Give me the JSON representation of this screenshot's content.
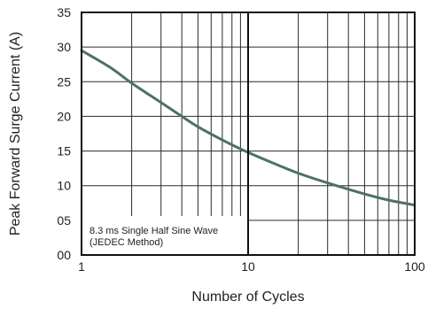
{
  "chart_data": {
    "type": "line",
    "xlabel": "Number of Cycles",
    "ylabel": "Peak Forward Surge Current (A)",
    "xscale": "log",
    "xlim": [
      1,
      100
    ],
    "ylim": [
      0,
      35
    ],
    "grid": true,
    "x_ticks": [
      {
        "value": 1,
        "label": "1"
      },
      {
        "value": 10,
        "label": "10"
      },
      {
        "value": 100,
        "label": "100"
      }
    ],
    "y_ticks": [
      {
        "value": 0,
        "label": "00"
      },
      {
        "value": 5,
        "label": "05"
      },
      {
        "value": 10,
        "label": "10"
      },
      {
        "value": 15,
        "label": "15"
      },
      {
        "value": 20,
        "label": "20"
      },
      {
        "value": 25,
        "label": "25"
      },
      {
        "value": 30,
        "label": "30"
      },
      {
        "value": 35,
        "label": "35"
      }
    ],
    "series": [
      {
        "color": "#4f6f6c",
        "x": [
          1,
          1.5,
          2,
          3,
          4,
          5,
          7,
          10,
          15,
          20,
          30,
          50,
          70,
          100
        ],
        "y": [
          29.5,
          27.0,
          24.8,
          22.0,
          20.0,
          18.5,
          16.6,
          14.8,
          13.0,
          11.8,
          10.4,
          8.8,
          7.9,
          7.2
        ]
      }
    ],
    "annotations": [
      {
        "line1": "8.3 ms Single Half Sine Wave",
        "line2": "(JEDEC Method)"
      }
    ]
  }
}
